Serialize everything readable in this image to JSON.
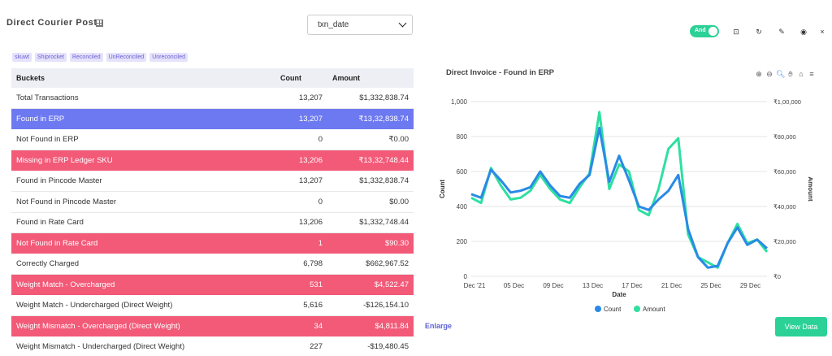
{
  "header": {
    "title": "Direct Courier Post",
    "select_value": "txn_date"
  },
  "tags": [
    "skuwt",
    "Shiprocket",
    "Reconciled",
    "UnReconciled",
    "Unreconciled"
  ],
  "table": {
    "columns": [
      "Buckets",
      "Count",
      "Amount"
    ],
    "rows": [
      {
        "bucket": "Total Transactions",
        "count": "13,207",
        "amount": "$1,332,838.74",
        "style": "normal"
      },
      {
        "bucket": "Found in ERP",
        "count": "13,207",
        "amount": "₹13,32,838.74",
        "style": "blue"
      },
      {
        "bucket": "Not Found in ERP",
        "count": "0",
        "amount": "₹0.00",
        "style": "normal"
      },
      {
        "bucket": "Missing in ERP Ledger SKU",
        "count": "13,206",
        "amount": "₹13,32,748.44",
        "style": "red"
      },
      {
        "bucket": "Found in Pincode Master",
        "count": "13,207",
        "amount": "$1,332,838.74",
        "style": "normal"
      },
      {
        "bucket": "Not Found in Pincode Master",
        "count": "0",
        "amount": "$0.00",
        "style": "normal"
      },
      {
        "bucket": "Found in Rate Card",
        "count": "13,206",
        "amount": "$1,332,748.44",
        "style": "normal"
      },
      {
        "bucket": "Not Found in Rate Card",
        "count": "1",
        "amount": "$90.30",
        "style": "red"
      },
      {
        "bucket": "Correctly Charged",
        "count": "6,798",
        "amount": "$662,967.52",
        "style": "normal"
      },
      {
        "bucket": "Weight Match - Overcharged",
        "count": "531",
        "amount": "$4,522.47",
        "style": "red"
      },
      {
        "bucket": "Weight Match - Undercharged (Direct Weight)",
        "count": "5,616",
        "amount": "-$126,154.10",
        "style": "normal"
      },
      {
        "bucket": "Weight Mismatch - Overcharged (Direct Weight)",
        "count": "34",
        "amount": "$4,811.84",
        "style": "red"
      },
      {
        "bucket": "Weight Mismatch - Undercharged (Direct  Weight)",
        "count": "227",
        "amount": "-$19,480.45",
        "style": "normal"
      }
    ]
  },
  "enlarge_label": "Enlarge",
  "controls": {
    "toggle_label": "And",
    "view_data_label": "View Data"
  },
  "chart_data": {
    "type": "line",
    "title": "Direct Invoice - Found in ERP",
    "xlabel": "Date",
    "ylabel": "Count",
    "y2label": "Amount",
    "x_ticks": [
      "Dec '21",
      "05 Dec",
      "09 Dec",
      "13 Dec",
      "17 Dec",
      "21 Dec",
      "25 Dec",
      "29 Dec"
    ],
    "y_ticks": [
      "0",
      "200",
      "400",
      "600",
      "800",
      "1,000"
    ],
    "y2_ticks": [
      "₹0",
      "₹20,000",
      "₹40,000",
      "₹60,000",
      "₹80,000",
      "₹1,00,000"
    ],
    "ylim": [
      0,
      1000
    ],
    "y2lim": [
      0,
      100000
    ],
    "x": [
      1,
      2,
      3,
      4,
      5,
      6,
      7,
      8,
      9,
      10,
      11,
      12,
      13,
      14,
      15,
      16,
      17,
      18,
      19,
      20,
      21,
      22,
      23,
      24,
      25,
      26,
      27,
      28,
      29,
      30,
      31
    ],
    "series": [
      {
        "name": "Count",
        "color": "#2a8ae6",
        "axis": "left",
        "values": [
          470,
          450,
          610,
          550,
          480,
          490,
          510,
          600,
          520,
          460,
          450,
          530,
          580,
          850,
          540,
          690,
          550,
          400,
          380,
          440,
          490,
          580,
          270,
          110,
          50,
          60,
          190,
          280,
          180,
          210,
          160
        ]
      },
      {
        "name": "Amount",
        "color": "#2ee0a0",
        "axis": "right",
        "values": [
          45000,
          42000,
          62000,
          52000,
          44000,
          45000,
          49000,
          58000,
          50000,
          44000,
          42000,
          51000,
          59000,
          94000,
          50000,
          64000,
          60000,
          38000,
          35000,
          50000,
          73000,
          79000,
          24000,
          11000,
          8000,
          5000,
          19000,
          30000,
          19000,
          21000,
          14000
        ]
      }
    ],
    "legend": "bottom-center",
    "grid": "horizontal"
  }
}
